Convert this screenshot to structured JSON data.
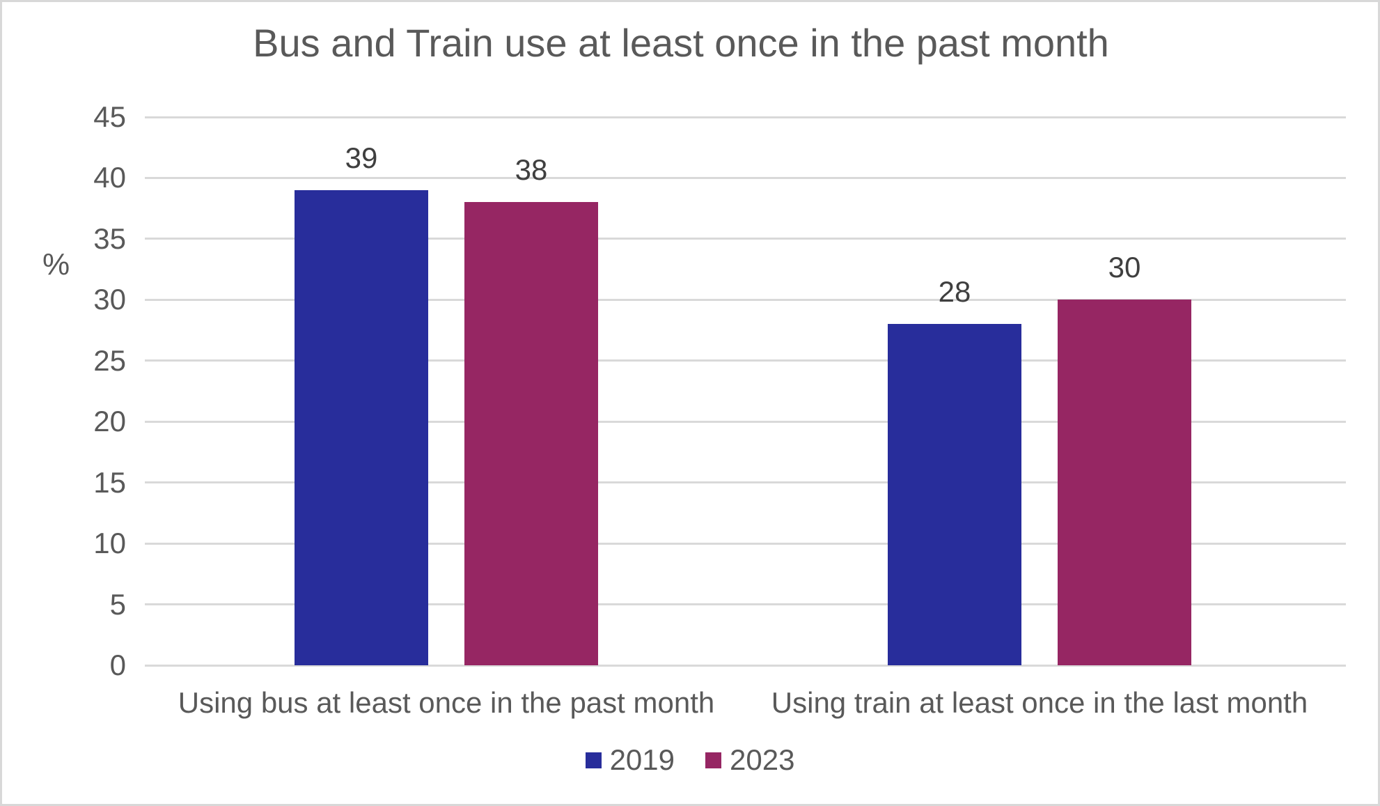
{
  "title": "Bus and Train use at least once in the past month",
  "chart_data": {
    "type": "bar",
    "categories": [
      "Using bus at least once in the past month",
      "Using train at least once in the last month"
    ],
    "series": [
      {
        "name": "2019",
        "color": "#282d9b",
        "values": [
          39,
          28
        ]
      },
      {
        "name": "2023",
        "color": "#962663",
        "values": [
          38,
          30
        ]
      }
    ],
    "ylabel": "%",
    "xlabel": "",
    "ylim": [
      0,
      45
    ],
    "ytick_step": 5,
    "grid": true,
    "value_labels": true,
    "legend_position": "bottom",
    "grid_color": "#d9d9d9",
    "text_color": "#595959",
    "value_label_color": "#3f3f3f"
  }
}
